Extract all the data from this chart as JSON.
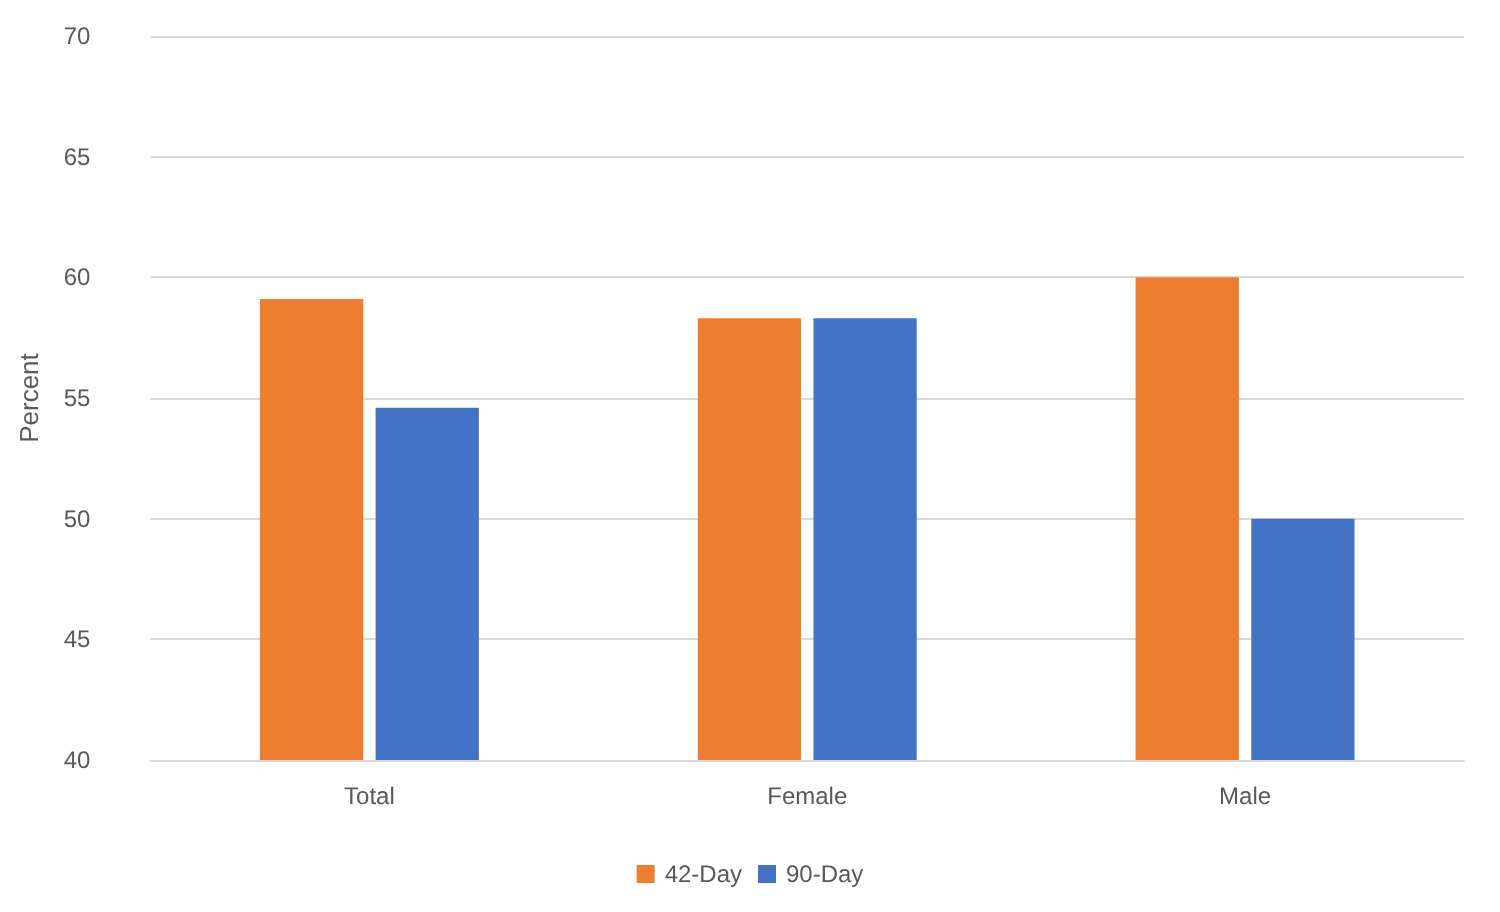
{
  "chart_data": {
    "type": "bar",
    "ylabel": "Percent",
    "categories": [
      "Total",
      "Female",
      "Male"
    ],
    "series": [
      {
        "name": "42-Day",
        "color": "#ed7d31",
        "values": [
          59.1,
          58.3,
          60
        ]
      },
      {
        "name": "90-Day",
        "color": "#4472c4",
        "values": [
          54.6,
          58.3,
          50
        ]
      }
    ],
    "ylim": [
      40,
      70
    ],
    "yticks": [
      40,
      45,
      50,
      55,
      60,
      65,
      70
    ],
    "grid": "y",
    "legend": "bottom"
  }
}
